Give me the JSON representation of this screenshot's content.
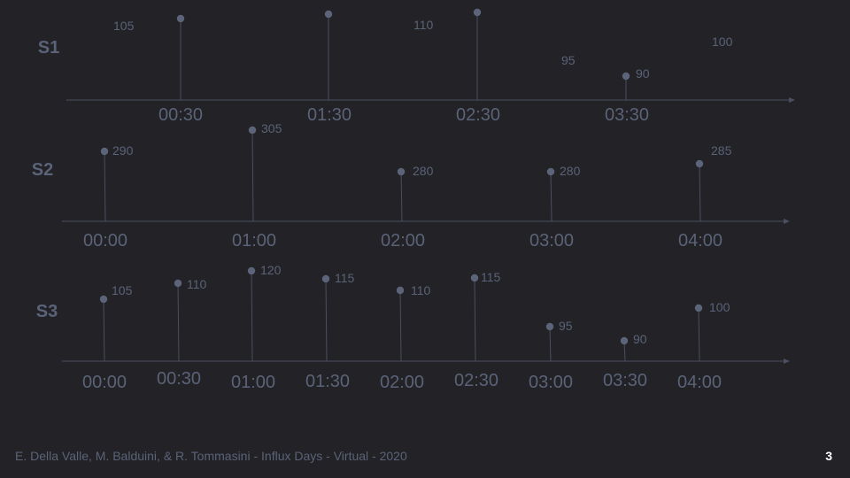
{
  "colors": {
    "background": "#232226",
    "axis": "#4a5060",
    "ink": "#5a6378",
    "marker": "#5b6478"
  },
  "streams": [
    {
      "name": "S1",
      "ticks": [
        "00:30",
        "01:30",
        "02:30",
        "03:30"
      ],
      "events": [
        {
          "value": "105"
        },
        {
          "value": "110"
        },
        {
          "value": "110"
        },
        {
          "value": "95"
        },
        {
          "value": "90"
        },
        {
          "value": "100"
        }
      ]
    },
    {
      "name": "S2",
      "ticks": [
        "00:00",
        "01:00",
        "02:00",
        "03:00",
        "04:00"
      ],
      "events": [
        {
          "value": "290"
        },
        {
          "value": "305"
        },
        {
          "value": "280"
        },
        {
          "value": "280"
        },
        {
          "value": "285"
        }
      ]
    },
    {
      "name": "S3",
      "ticks": [
        "00:00",
        "00:30",
        "01:00",
        "01:30",
        "02:00",
        "02:30",
        "03:00",
        "03:30",
        "04:00"
      ],
      "events": [
        {
          "value": "105"
        },
        {
          "value": "110"
        },
        {
          "value": "120"
        },
        {
          "value": "115"
        },
        {
          "value": "110"
        },
        {
          "value": "115"
        },
        {
          "value": "95"
        },
        {
          "value": "90"
        },
        {
          "value": "100"
        }
      ]
    }
  ],
  "footer": "E. Della Valle, M. Balduini, & R. Tommasini - Influx Days - Virtual - 2020",
  "page_number": "3"
}
